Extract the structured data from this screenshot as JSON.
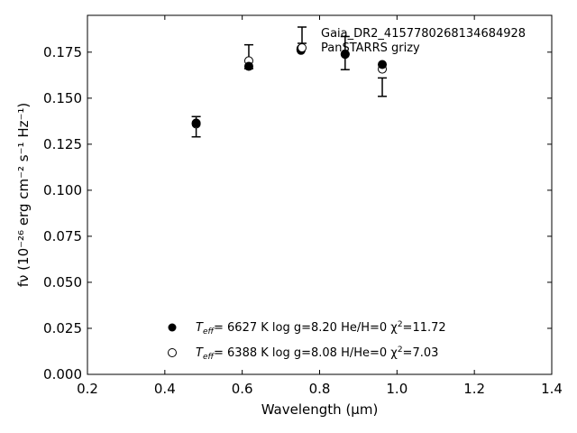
{
  "chart_data": {
    "type": "scatter",
    "title": "",
    "xlabel": "Wavelength (μm)",
    "ylabel": "fν (10⁻²⁶ erg cm⁻² s⁻¹ Hz⁻¹)",
    "xlim": [
      0.2,
      1.4
    ],
    "ylim": [
      0.0,
      0.195
    ],
    "x_ticks": [
      "0.2",
      "0.4",
      "0.6",
      "0.8",
      "1.0",
      "1.2",
      "1.4"
    ],
    "y_ticks": [
      "0.000",
      "0.025",
      "0.050",
      "0.075",
      "0.100",
      "0.125",
      "0.150",
      "0.175"
    ],
    "grid": false,
    "legend_position": "top-right",
    "series": [
      {
        "name": "Gaia_DR2_4157780268134684928",
        "kind": "errorbar",
        "x": [
          0.481,
          0.617,
          0.752,
          0.866,
          0.962
        ],
        "y": [
          0.1345,
          0.1725,
          0.1765,
          0.1745,
          0.156
        ],
        "yerr": [
          0.0055,
          0.0065,
          0.0,
          0.009,
          0.005
        ]
      },
      {
        "name": "PanSTARRS grizy",
        "kind": "marker",
        "marker": "filled",
        "x": [
          0.481,
          0.617,
          0.752,
          0.866,
          0.962
        ],
        "y": [
          0.1365,
          0.1673,
          0.176,
          0.1738,
          0.1683
        ]
      },
      {
        "name": "",
        "kind": "marker",
        "marker": "open",
        "x": [
          0.481,
          0.617,
          0.752,
          0.866,
          0.962
        ],
        "y": [
          0.136,
          0.1703,
          0.177,
          0.174,
          0.1658
        ]
      }
    ],
    "annotations": [
      {
        "marker": "filled",
        "prefix": "T",
        "sub": "eff",
        "text": "=  6627 K  log g=8.20  He/H=0  χ",
        "sup": "2",
        "tail": "=11.72"
      },
      {
        "marker": "open",
        "prefix": "T",
        "sub": "eff",
        "text": "=  6388 K  log g=8.08  H/He=0  χ",
        "sup": "2",
        "tail": "=7.03"
      }
    ]
  }
}
